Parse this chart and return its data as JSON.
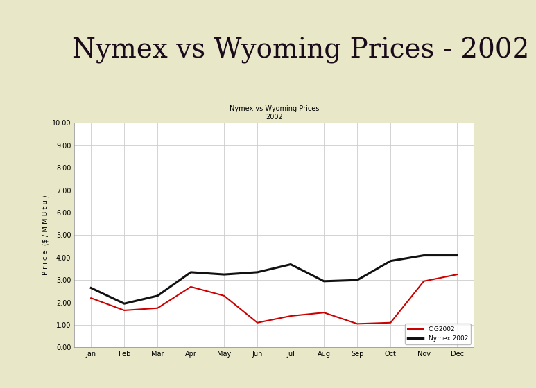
{
  "title_main": "Nymex vs Wyoming Prices - 2002",
  "chart_title_line1": "Nymex vs Wyoming Prices",
  "chart_title_line2": "2002",
  "months": [
    "Jan",
    "Feb",
    "Mar",
    "Apr",
    "May",
    "Jun",
    "Jul",
    "Aug",
    "Sep",
    "Oct",
    "Nov",
    "Dec"
  ],
  "cig2002": [
    2.2,
    1.65,
    1.75,
    2.7,
    2.3,
    1.1,
    1.4,
    1.55,
    1.05,
    1.1,
    2.95,
    3.25
  ],
  "nymex2002": [
    2.65,
    1.95,
    2.3,
    3.35,
    3.25,
    3.35,
    3.7,
    2.95,
    3.0,
    3.85,
    4.1,
    4.1
  ],
  "ylim": [
    0.0,
    10.0
  ],
  "yticks": [
    0.0,
    1.0,
    2.0,
    3.0,
    4.0,
    5.0,
    6.0,
    7.0,
    8.0,
    9.0,
    10.0
  ],
  "ytick_labels": [
    "0.00",
    "1.00",
    "2.00",
    "3.00",
    "4.00",
    "5.00",
    "6.00",
    "7.00",
    "8.00",
    "9.00",
    "10.00"
  ],
  "ylabel": "P r i c e  ($ / M M B t u )",
  "cig_color": "#cc0000",
  "nymex_color": "#111111",
  "cig_label": "CIG2002",
  "nymex_label": "Nymex 2002",
  "bg_chart_outer": "#f5f5dc",
  "bg_chart_inner": "#ffffff",
  "slide_bg": "#e8e8c8",
  "title_color": "#1a0a1a",
  "dark_bar_color": "#2a0a2a",
  "gray_tab_color": "#9090a8",
  "left_stripe_color": "#b8b870"
}
